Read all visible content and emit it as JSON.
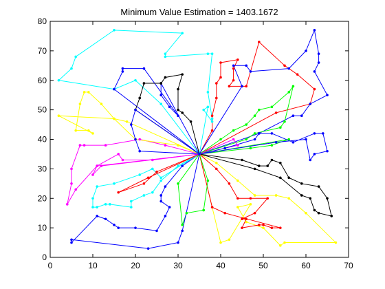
{
  "chart_data": {
    "type": "line",
    "title": "Minimum Value Estimation = 1403.1672",
    "xlabel": "",
    "ylabel": "",
    "xlim": [
      0,
      70
    ],
    "ylim": [
      0,
      80
    ],
    "x_ticks": [
      "0",
      "10",
      "20",
      "30",
      "40",
      "50",
      "60",
      "70"
    ],
    "y_ticks": [
      "0",
      "10",
      "20",
      "30",
      "40",
      "50",
      "60",
      "70",
      "80"
    ],
    "grid": false,
    "depot": [
      35,
      35
    ],
    "series": [
      {
        "color": "#00ffff",
        "points": [
          [
            35,
            35
          ],
          [
            26,
            52
          ],
          [
            20,
            60
          ],
          [
            15,
            57
          ],
          [
            2,
            60
          ],
          [
            5,
            64
          ],
          [
            6,
            68
          ],
          [
            15,
            77
          ],
          [
            31,
            76
          ],
          [
            27,
            69
          ],
          [
            27,
            68
          ],
          [
            37,
            69
          ],
          [
            38,
            69
          ],
          [
            37,
            56
          ],
          [
            38,
            47
          ],
          [
            38,
            46
          ],
          [
            36,
            50
          ],
          [
            37,
            51
          ],
          [
            35,
            35
          ]
        ]
      },
      {
        "color": "#0000ff",
        "points": [
          [
            35,
            35
          ],
          [
            26,
            59
          ],
          [
            26,
            55
          ],
          [
            28,
            51
          ],
          [
            30,
            48
          ],
          [
            22,
            64
          ],
          [
            17,
            64
          ],
          [
            17,
            63
          ],
          [
            15,
            57
          ],
          [
            35,
            35
          ]
        ]
      },
      {
        "color": "#000000",
        "points": [
          [
            35,
            35
          ],
          [
            20,
            50
          ],
          [
            21,
            54
          ],
          [
            22,
            59
          ],
          [
            26,
            59
          ],
          [
            26,
            59
          ],
          [
            27,
            61
          ],
          [
            31,
            62
          ],
          [
            30,
            57
          ],
          [
            30,
            50
          ],
          [
            31,
            49
          ],
          [
            33,
            46
          ],
          [
            35,
            35
          ]
        ]
      },
      {
        "color": "#ff0000",
        "points": [
          [
            35,
            35
          ],
          [
            38,
            43
          ],
          [
            38,
            48
          ],
          [
            39,
            54
          ],
          [
            39,
            59
          ],
          [
            40,
            61
          ],
          [
            40,
            66
          ],
          [
            44,
            67
          ],
          [
            43,
            64
          ],
          [
            43,
            60
          ],
          [
            42,
            58
          ],
          [
            46,
            58
          ],
          [
            49,
            73
          ],
          [
            55,
            65
          ],
          [
            58,
            62
          ],
          [
            62,
            57
          ],
          [
            61,
            52
          ],
          [
            53,
            49
          ],
          [
            35,
            35
          ]
        ]
      },
      {
        "color": "#0000ff",
        "points": [
          [
            35,
            35
          ],
          [
            45,
            58
          ],
          [
            43,
            65
          ],
          [
            46,
            65
          ],
          [
            47,
            63
          ],
          [
            56,
            64
          ],
          [
            60,
            70
          ],
          [
            62,
            77
          ],
          [
            63,
            69
          ],
          [
            63,
            66
          ],
          [
            62,
            63
          ],
          [
            65,
            55
          ],
          [
            61,
            52
          ],
          [
            59,
            48
          ],
          [
            57,
            48
          ],
          [
            49,
            42
          ],
          [
            35,
            35
          ]
        ]
      },
      {
        "color": "#00ff00",
        "points": [
          [
            35,
            35
          ],
          [
            40,
            40
          ],
          [
            43,
            43
          ],
          [
            46,
            45
          ],
          [
            48,
            48
          ],
          [
            49,
            50
          ],
          [
            52,
            51
          ],
          [
            56,
            56
          ],
          [
            57,
            58
          ],
          [
            55,
            46
          ],
          [
            54,
            44
          ],
          [
            48,
            42
          ],
          [
            46,
            40
          ],
          [
            35,
            35
          ]
        ]
      },
      {
        "color": "#ff00ff",
        "points": [
          [
            35,
            35
          ],
          [
            43,
            40
          ],
          [
            44,
            38
          ],
          [
            35,
            35
          ]
        ]
      },
      {
        "color": "#00ff00",
        "points": [
          [
            35,
            35
          ],
          [
            47,
            37
          ],
          [
            52,
            38
          ],
          [
            56,
            40
          ],
          [
            35,
            35
          ]
        ]
      },
      {
        "color": "#0000ff",
        "points": [
          [
            35,
            35
          ],
          [
            41,
            37
          ],
          [
            48,
            40
          ],
          [
            49,
            42
          ],
          [
            52,
            42
          ],
          [
            57,
            39
          ],
          [
            62,
            42
          ],
          [
            64,
            42
          ],
          [
            65,
            36
          ],
          [
            62,
            35
          ],
          [
            61,
            33
          ],
          [
            60,
            40
          ],
          [
            53,
            39
          ],
          [
            35,
            35
          ]
        ]
      },
      {
        "color": "#000000",
        "points": [
          [
            35,
            35
          ],
          [
            45,
            33
          ],
          [
            49,
            31
          ],
          [
            51,
            31
          ],
          [
            52,
            33
          ],
          [
            54,
            32
          ],
          [
            56,
            27
          ],
          [
            59,
            25
          ],
          [
            63,
            24
          ],
          [
            65,
            20
          ],
          [
            66,
            14
          ],
          [
            63,
            15
          ],
          [
            62,
            16
          ],
          [
            61,
            20
          ],
          [
            59,
            21
          ],
          [
            54,
            27
          ],
          [
            48,
            30
          ],
          [
            35,
            35
          ]
        ]
      },
      {
        "color": "#ffff00",
        "points": [
          [
            35,
            35
          ],
          [
            39,
            32
          ],
          [
            44,
            26
          ],
          [
            48,
            21
          ],
          [
            53,
            21
          ],
          [
            56,
            20
          ],
          [
            60,
            15
          ],
          [
            67,
            5
          ],
          [
            55,
            5
          ],
          [
            54,
            4
          ],
          [
            50,
            10
          ],
          [
            46,
            12
          ],
          [
            44,
            17
          ],
          [
            47,
            18
          ],
          [
            42,
            6
          ],
          [
            40,
            5
          ],
          [
            35,
            35
          ]
        ]
      },
      {
        "color": "#ff0000",
        "points": [
          [
            35,
            35
          ],
          [
            39,
            30
          ],
          [
            42,
            25
          ],
          [
            44,
            20
          ],
          [
            47,
            20
          ],
          [
            51,
            20
          ],
          [
            48,
            15
          ],
          [
            45,
            13
          ],
          [
            46,
            13
          ],
          [
            45,
            10
          ],
          [
            49,
            11
          ],
          [
            50,
            11
          ],
          [
            52,
            10
          ],
          [
            54,
            10
          ],
          [
            41,
            15
          ],
          [
            38,
            17
          ],
          [
            35,
            35
          ]
        ]
      },
      {
        "color": "#00ff00",
        "points": [
          [
            35,
            35
          ],
          [
            37,
            26
          ],
          [
            36,
            16
          ],
          [
            36,
            16
          ],
          [
            32,
            15
          ],
          [
            31,
            11
          ],
          [
            30,
            25
          ],
          [
            35,
            35
          ]
        ]
      },
      {
        "color": "#0000ff",
        "points": [
          [
            35,
            35
          ],
          [
            31,
            31
          ],
          [
            27,
            24
          ],
          [
            26,
            21
          ],
          [
            26,
            19
          ],
          [
            28,
            17
          ],
          [
            27,
            14
          ],
          [
            25,
            9
          ],
          [
            20,
            10
          ],
          [
            16,
            10
          ],
          [
            15,
            11
          ],
          [
            13,
            13
          ],
          [
            11,
            14
          ],
          [
            5,
            5
          ],
          [
            5,
            6
          ],
          [
            23,
            3
          ],
          [
            30,
            5
          ],
          [
            31,
            9
          ],
          [
            35,
            35
          ]
        ]
      },
      {
        "color": "#00ffff",
        "points": [
          [
            35,
            35
          ],
          [
            30,
            31
          ],
          [
            26,
            26
          ],
          [
            24,
            22
          ],
          [
            22,
            21
          ],
          [
            19,
            19
          ],
          [
            19,
            17
          ],
          [
            14,
            18
          ],
          [
            13,
            18
          ],
          [
            11,
            17
          ],
          [
            10,
            17
          ],
          [
            10,
            20
          ],
          [
            11,
            24
          ],
          [
            15,
            25
          ],
          [
            21,
            28
          ],
          [
            24,
            30
          ],
          [
            26,
            27
          ],
          [
            35,
            35
          ]
        ]
      },
      {
        "color": "#ff0000",
        "points": [
          [
            35,
            35
          ],
          [
            25,
            29
          ],
          [
            22,
            25
          ],
          [
            16,
            22
          ],
          [
            23,
            27
          ],
          [
            35,
            35
          ]
        ]
      },
      {
        "color": "#ff00ff",
        "points": [
          [
            35,
            35
          ],
          [
            24,
            33
          ],
          [
            17,
            33
          ],
          [
            16,
            35
          ],
          [
            11,
            31
          ],
          [
            10,
            28
          ],
          [
            12,
            31
          ],
          [
            35,
            35
          ]
        ]
      },
      {
        "color": "#ff00ff",
        "points": [
          [
            35,
            35
          ],
          [
            27,
            38
          ],
          [
            21,
            40
          ],
          [
            13,
            38
          ],
          [
            8,
            38
          ],
          [
            7,
            38
          ],
          [
            5,
            30
          ],
          [
            5,
            25
          ],
          [
            4,
            18
          ],
          [
            6,
            23
          ],
          [
            11,
            31
          ],
          [
            35,
            35
          ]
        ]
      },
      {
        "color": "#ffff00",
        "points": [
          [
            35,
            35
          ],
          [
            30,
            38
          ],
          [
            20,
            40
          ],
          [
            15,
            47
          ],
          [
            12,
            52
          ],
          [
            9,
            56
          ],
          [
            8,
            56
          ],
          [
            7,
            52
          ],
          [
            6,
            43
          ],
          [
            9,
            43
          ],
          [
            10,
            42
          ],
          [
            2,
            48
          ],
          [
            15,
            47
          ],
          [
            18,
            46
          ],
          [
            35,
            35
          ]
        ]
      },
      {
        "color": "#0000ff",
        "points": [
          [
            35,
            35
          ],
          [
            21,
            36
          ],
          [
            20,
            40
          ],
          [
            19,
            45
          ],
          [
            20,
            50
          ],
          [
            35,
            35
          ]
        ]
      }
    ]
  }
}
